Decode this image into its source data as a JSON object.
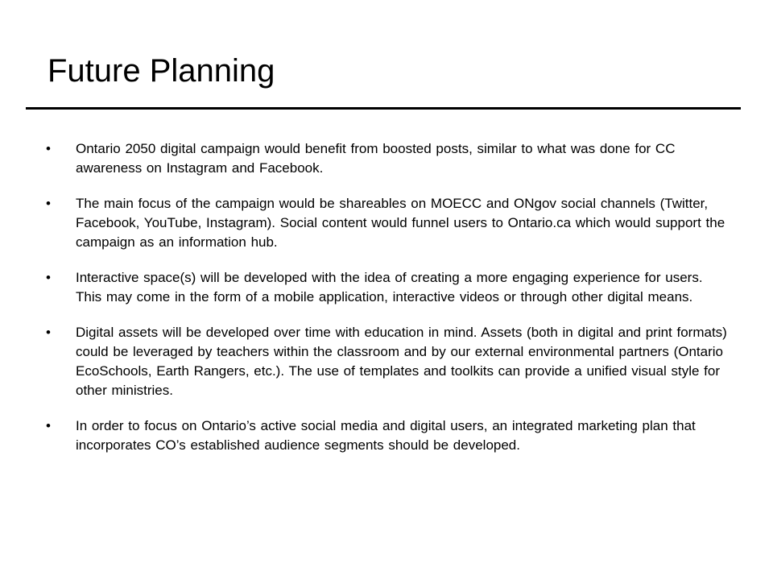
{
  "slide": {
    "title": "Future Planning",
    "bullet_glyph": "•",
    "bullets": [
      "Ontario 2050 digital campaign would benefit from boosted posts, similar to what was done for CC awareness on Instagram and Facebook.",
      "The main focus of the campaign would be shareables on MOECC and ONgov social channels (Twitter, Facebook, YouTube, Instagram). Social content would funnel users to Ontario.ca which would support the campaign as an information hub.",
      "Interactive space(s) will be developed with the idea of creating a more engaging experience for users. This may come in the form of a mobile application, interactive videos or through other digital means.",
      "Digital assets will be developed over time with education in mind. Assets (both in digital and print formats) could be leveraged by teachers within the classroom and by our external environmental partners (Ontario EcoSchools, Earth Rangers, etc.). The use of templates and toolkits can provide a unified visual style for other ministries.",
      "In order to focus on Ontario’s active social media and digital users, an integrated marketing plan that incorporates CO’s established audience segments should be developed."
    ]
  }
}
